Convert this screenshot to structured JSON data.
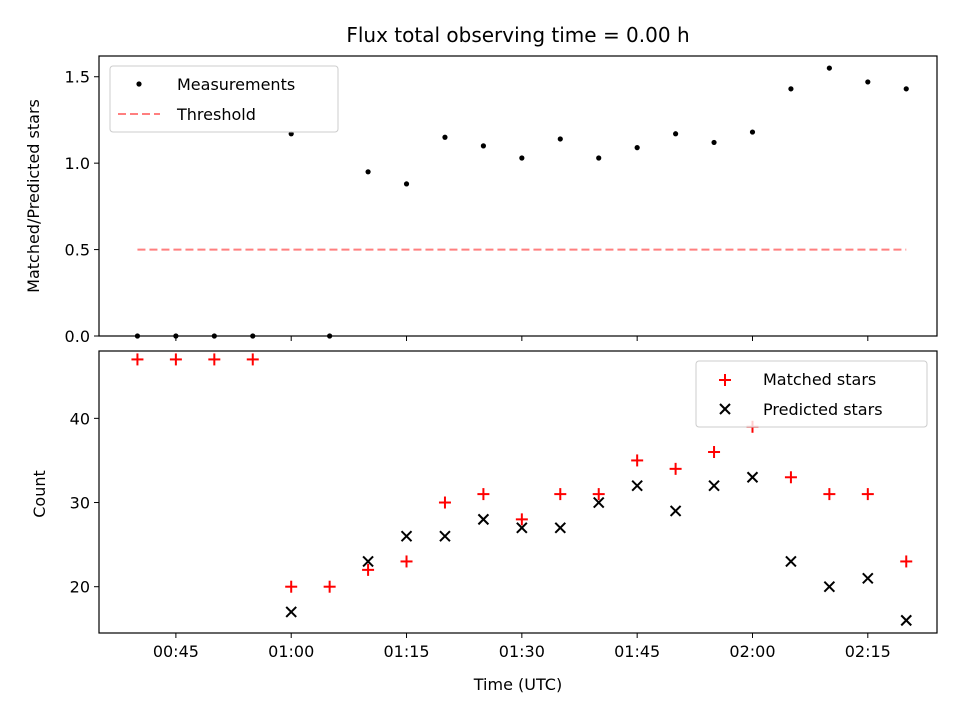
{
  "chart_data": [
    {
      "type": "scatter",
      "title": "Flux total observing time = 0.00 h",
      "xlabel": "",
      "ylabel": "Matched/Predicted stars",
      "ylim": [
        0,
        1.62
      ],
      "yticks": [
        0.0,
        0.5,
        1.0,
        1.5
      ],
      "ytick_labels": [
        "0.0",
        "0.5",
        "1.0",
        "1.5"
      ],
      "legend_position": "top-left",
      "series": [
        {
          "name": "Measurements",
          "marker": "dot",
          "color": "#000000",
          "x": [
            "00:40",
            "00:45",
            "00:50",
            "00:55",
            "01:00",
            "01:05",
            "01:10",
            "01:15",
            "01:20",
            "01:25",
            "01:30",
            "01:35",
            "01:40",
            "01:45",
            "01:50",
            "01:55",
            "02:00",
            "02:05",
            "02:10",
            "02:15",
            "02:20"
          ],
          "y": [
            0.0,
            0.0,
            0.0,
            0.0,
            1.17,
            0.0,
            0.95,
            0.88,
            1.15,
            1.1,
            1.03,
            1.14,
            1.03,
            1.09,
            1.17,
            1.12,
            1.18,
            1.43,
            1.55,
            1.47,
            1.43
          ]
        },
        {
          "name": "Threshold",
          "marker": "dashed-line",
          "color": "#ff7f7f",
          "x": [
            "00:40",
            "02:20"
          ],
          "y": [
            0.5,
            0.5
          ]
        }
      ]
    },
    {
      "type": "scatter",
      "title": "",
      "xlabel": "Time (UTC)",
      "ylabel": "Count",
      "ylim": [
        14.5,
        48
      ],
      "yticks": [
        20,
        30,
        40
      ],
      "ytick_labels": [
        "20",
        "30",
        "40"
      ],
      "xlim": [
        "00:35",
        "02:24"
      ],
      "xticks": [
        "00:45",
        "01:00",
        "01:15",
        "01:30",
        "01:45",
        "02:00",
        "02:15"
      ],
      "legend_position": "top-right",
      "series": [
        {
          "name": "Matched stars",
          "marker": "plus",
          "color": "#ff0000",
          "x": [
            "00:40",
            "00:45",
            "00:50",
            "00:55",
            "01:00",
            "01:05",
            "01:10",
            "01:15",
            "01:20",
            "01:25",
            "01:30",
            "01:35",
            "01:40",
            "01:45",
            "01:50",
            "01:55",
            "02:00",
            "02:05",
            "02:10",
            "02:15",
            "02:20"
          ],
          "y": [
            47,
            47,
            47,
            47,
            20,
            20,
            22,
            23,
            30,
            31,
            28,
            31,
            31,
            35,
            34,
            36,
            39,
            33,
            31,
            31,
            23
          ]
        },
        {
          "name": "Predicted stars",
          "marker": "x",
          "color": "#000000",
          "x": [
            "01:00",
            "01:10",
            "01:15",
            "01:20",
            "01:25",
            "01:30",
            "01:35",
            "01:40",
            "01:45",
            "01:50",
            "01:55",
            "02:00",
            "02:05",
            "02:10",
            "02:15",
            "02:20"
          ],
          "y": [
            17,
            23,
            26,
            26,
            28,
            27,
            27,
            30,
            32,
            29,
            32,
            33,
            23,
            20,
            21,
            16
          ]
        }
      ]
    }
  ]
}
